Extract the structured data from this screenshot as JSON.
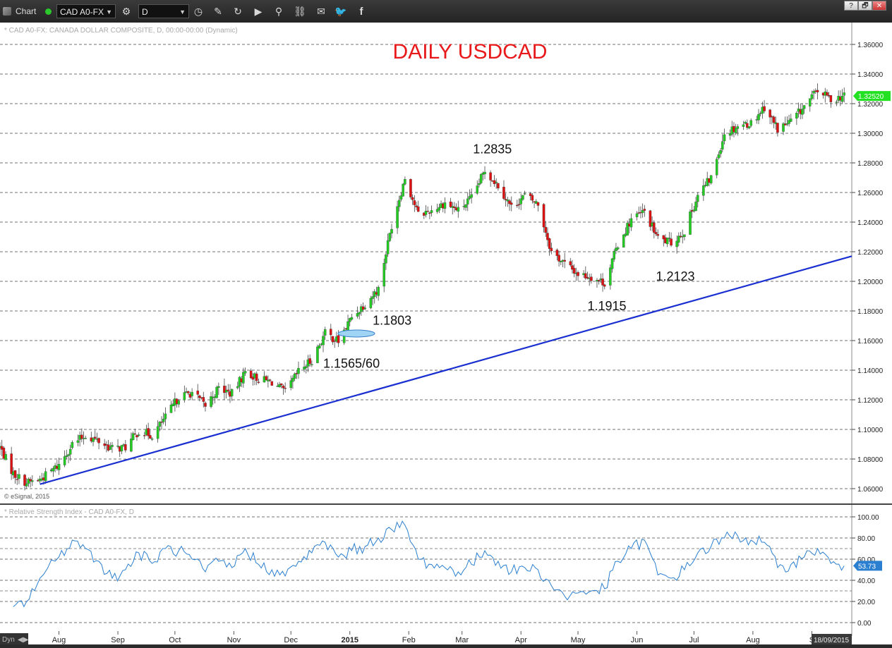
{
  "toolbar": {
    "chart_label": "Chart",
    "symbol": "CAD A0-FX",
    "interval": "D",
    "icons": [
      "chart-status-dot",
      "gear-icon",
      "crosshair-cursor-icon",
      "draw-pencil-icon",
      "refresh-icon",
      "play-icon",
      "search-icon",
      "link-icon",
      "comment-icon",
      "twitter-icon",
      "facebook-icon"
    ],
    "window_buttons": [
      "?",
      "🗗",
      "✕"
    ]
  },
  "price_panel": {
    "header": "* CAD A0-FX: CANADA DOLLAR COMPOSITE, D, 00:00-00:00 (Dynamic)",
    "copyright": "© eSignal, 2015",
    "title": "DAILY USDCAD",
    "title_color": "#e8191b",
    "current_price": "1.32520",
    "current_price_color": "#22e022",
    "annotations": [
      "1.2835",
      "1.1803",
      "1.1565/60",
      "1.1915",
      "1.2123"
    ],
    "y_ticks": [
      "1.36000",
      "1.34000",
      "1.32000",
      "1.30000",
      "1.28000",
      "1.26000",
      "1.24000",
      "1.22000",
      "1.20000",
      "1.18000",
      "1.16000",
      "1.14000",
      "1.12000",
      "1.10000",
      "1.08000",
      "1.06000"
    ]
  },
  "rsi_panel": {
    "header": "* Relative Strength Index - CAD A0-FX, D",
    "current_value": "53.73",
    "line_color": "#2a7fd0",
    "y_ticks": [
      "100.00",
      "80.00",
      "60.00",
      "40.00",
      "20.00",
      "0.00"
    ]
  },
  "x_axis": {
    "labels": [
      "Aug",
      "Sep",
      "Oct",
      "Nov",
      "Dec",
      "2015",
      "Feb",
      "Mar",
      "Apr",
      "May",
      "Jun",
      "Jul",
      "Aug",
      "S"
    ],
    "date_badge": "18/09/2015",
    "dyn_label": "Dyn"
  },
  "chart_data": [
    {
      "type": "candlestick",
      "title": "DAILY USDCAD",
      "ylim": [
        1.05,
        1.37
      ],
      "grid": true,
      "up_color": "#22cc22",
      "down_color": "#dd1111",
      "trendline": {
        "color": "#1a2fd0",
        "from": {
          "date": "2014-07-22",
          "value": 1.063
        },
        "to": {
          "date": "2015-09-18",
          "value": 1.217
        }
      },
      "key_levels": [
        {
          "label": "1.2835",
          "value": 1.2835
        },
        {
          "label": "1.1803",
          "value": 1.1803
        },
        {
          "label": "1.1565/60",
          "value": 1.1565
        },
        {
          "label": "1.1915",
          "value": 1.1915
        },
        {
          "label": "1.2123",
          "value": 1.2123
        }
      ],
      "close_path": [
        {
          "date": "2014-07-01",
          "close": 1.088
        },
        {
          "date": "2014-07-08",
          "close": 1.07
        },
        {
          "date": "2014-07-15",
          "close": 1.064
        },
        {
          "date": "2014-07-22",
          "close": 1.066
        },
        {
          "date": "2014-08-01",
          "close": 1.076
        },
        {
          "date": "2014-08-08",
          "close": 1.09
        },
        {
          "date": "2014-08-15",
          "close": 1.096
        },
        {
          "date": "2014-08-22",
          "close": 1.092
        },
        {
          "date": "2014-08-29",
          "close": 1.087
        },
        {
          "date": "2014-09-05",
          "close": 1.088
        },
        {
          "date": "2014-09-12",
          "close": 1.099
        },
        {
          "date": "2014-09-19",
          "close": 1.096
        },
        {
          "date": "2014-09-26",
          "close": 1.108
        },
        {
          "date": "2014-10-03",
          "close": 1.122
        },
        {
          "date": "2014-10-10",
          "close": 1.125
        },
        {
          "date": "2014-10-17",
          "close": 1.116
        },
        {
          "date": "2014-10-24",
          "close": 1.128
        },
        {
          "date": "2014-10-31",
          "close": 1.124
        },
        {
          "date": "2014-11-07",
          "close": 1.139
        },
        {
          "date": "2014-11-14",
          "close": 1.134
        },
        {
          "date": "2014-11-21",
          "close": 1.132
        },
        {
          "date": "2014-11-28",
          "close": 1.125
        },
        {
          "date": "2014-12-05",
          "close": 1.139
        },
        {
          "date": "2014-12-12",
          "close": 1.147
        },
        {
          "date": "2014-12-19",
          "close": 1.165
        },
        {
          "date": "2014-12-26",
          "close": 1.1595
        },
        {
          "date": "2015-01-02",
          "close": 1.176
        },
        {
          "date": "2015-01-09",
          "close": 1.185
        },
        {
          "date": "2015-01-16",
          "close": 1.195
        },
        {
          "date": "2015-01-23",
          "close": 1.238
        },
        {
          "date": "2015-01-30",
          "close": 1.27
        },
        {
          "date": "2015-02-06",
          "close": 1.245
        },
        {
          "date": "2015-02-13",
          "close": 1.248
        },
        {
          "date": "2015-02-20",
          "close": 1.253
        },
        {
          "date": "2015-02-27",
          "close": 1.248
        },
        {
          "date": "2015-03-06",
          "close": 1.256
        },
        {
          "date": "2015-03-13",
          "close": 1.275
        },
        {
          "date": "2015-03-20",
          "close": 1.265
        },
        {
          "date": "2015-03-27",
          "close": 1.25
        },
        {
          "date": "2015-04-03",
          "close": 1.258
        },
        {
          "date": "2015-04-10",
          "close": 1.252
        },
        {
          "date": "2015-04-17",
          "close": 1.22
        },
        {
          "date": "2015-04-24",
          "close": 1.212
        },
        {
          "date": "2015-05-01",
          "close": 1.205
        },
        {
          "date": "2015-05-08",
          "close": 1.203
        },
        {
          "date": "2015-05-15",
          "close": 1.199
        },
        {
          "date": "2015-05-22",
          "close": 1.225
        },
        {
          "date": "2015-05-29",
          "close": 1.242
        },
        {
          "date": "2015-06-05",
          "close": 1.247
        },
        {
          "date": "2015-06-12",
          "close": 1.229
        },
        {
          "date": "2015-06-19",
          "close": 1.226
        },
        {
          "date": "2015-06-26",
          "close": 1.234
        },
        {
          "date": "2015-07-03",
          "close": 1.258
        },
        {
          "date": "2015-07-10",
          "close": 1.27
        },
        {
          "date": "2015-07-17",
          "close": 1.3
        },
        {
          "date": "2015-07-24",
          "close": 1.305
        },
        {
          "date": "2015-07-31",
          "close": 1.307
        },
        {
          "date": "2015-08-07",
          "close": 1.318
        },
        {
          "date": "2015-08-14",
          "close": 1.303
        },
        {
          "date": "2015-08-21",
          "close": 1.308
        },
        {
          "date": "2015-08-28",
          "close": 1.318
        },
        {
          "date": "2015-09-04",
          "close": 1.329
        },
        {
          "date": "2015-09-11",
          "close": 1.323
        },
        {
          "date": "2015-09-18",
          "close": 1.3252
        }
      ]
    },
    {
      "type": "line",
      "title": "Relative Strength Index - CAD A0-FX, D",
      "ylim": [
        0,
        100
      ],
      "series": [
        {
          "name": "Relative Strength Index",
          "points": [
            {
              "date": "2014-07-08",
              "value": 15
            },
            {
              "date": "2014-07-15",
              "value": 20
            },
            {
              "date": "2014-07-22",
              "value": 42
            },
            {
              "date": "2014-08-01",
              "value": 62
            },
            {
              "date": "2014-08-08",
              "value": 78
            },
            {
              "date": "2014-08-15",
              "value": 70
            },
            {
              "date": "2014-08-22",
              "value": 58
            },
            {
              "date": "2014-08-29",
              "value": 42
            },
            {
              "date": "2014-09-05",
              "value": 50
            },
            {
              "date": "2014-09-12",
              "value": 66
            },
            {
              "date": "2014-09-19",
              "value": 56
            },
            {
              "date": "2014-09-26",
              "value": 70
            },
            {
              "date": "2014-10-03",
              "value": 68
            },
            {
              "date": "2014-10-10",
              "value": 60
            },
            {
              "date": "2014-10-17",
              "value": 48
            },
            {
              "date": "2014-10-24",
              "value": 58
            },
            {
              "date": "2014-10-31",
              "value": 52
            },
            {
              "date": "2014-11-07",
              "value": 70
            },
            {
              "date": "2014-11-14",
              "value": 55
            },
            {
              "date": "2014-11-21",
              "value": 50
            },
            {
              "date": "2014-11-28",
              "value": 44
            },
            {
              "date": "2014-12-05",
              "value": 58
            },
            {
              "date": "2014-12-12",
              "value": 66
            },
            {
              "date": "2014-12-19",
              "value": 76
            },
            {
              "date": "2014-12-26",
              "value": 62
            },
            {
              "date": "2015-01-02",
              "value": 68
            },
            {
              "date": "2015-01-09",
              "value": 72
            },
            {
              "date": "2015-01-16",
              "value": 80
            },
            {
              "date": "2015-01-23",
              "value": 88
            },
            {
              "date": "2015-01-30",
              "value": 92
            },
            {
              "date": "2015-02-06",
              "value": 60
            },
            {
              "date": "2015-02-13",
              "value": 55
            },
            {
              "date": "2015-02-20",
              "value": 52
            },
            {
              "date": "2015-02-27",
              "value": 48
            },
            {
              "date": "2015-03-06",
              "value": 55
            },
            {
              "date": "2015-03-13",
              "value": 68
            },
            {
              "date": "2015-03-20",
              "value": 58
            },
            {
              "date": "2015-03-27",
              "value": 48
            },
            {
              "date": "2015-04-03",
              "value": 52
            },
            {
              "date": "2015-04-10",
              "value": 50
            },
            {
              "date": "2015-04-17",
              "value": 35
            },
            {
              "date": "2015-04-24",
              "value": 25
            },
            {
              "date": "2015-05-01",
              "value": 28
            },
            {
              "date": "2015-05-08",
              "value": 30
            },
            {
              "date": "2015-05-15",
              "value": 32
            },
            {
              "date": "2015-05-22",
              "value": 58
            },
            {
              "date": "2015-05-29",
              "value": 70
            },
            {
              "date": "2015-06-05",
              "value": 78
            },
            {
              "date": "2015-06-12",
              "value": 45
            },
            {
              "date": "2015-06-19",
              "value": 42
            },
            {
              "date": "2015-06-26",
              "value": 50
            },
            {
              "date": "2015-07-03",
              "value": 66
            },
            {
              "date": "2015-07-10",
              "value": 72
            },
            {
              "date": "2015-07-17",
              "value": 80
            },
            {
              "date": "2015-07-24",
              "value": 82
            },
            {
              "date": "2015-07-31",
              "value": 78
            },
            {
              "date": "2015-08-07",
              "value": 76
            },
            {
              "date": "2015-08-14",
              "value": 52
            },
            {
              "date": "2015-08-21",
              "value": 55
            },
            {
              "date": "2015-08-28",
              "value": 62
            },
            {
              "date": "2015-09-04",
              "value": 70
            },
            {
              "date": "2015-09-11",
              "value": 56
            },
            {
              "date": "2015-09-18",
              "value": 53.73
            }
          ]
        }
      ]
    }
  ]
}
